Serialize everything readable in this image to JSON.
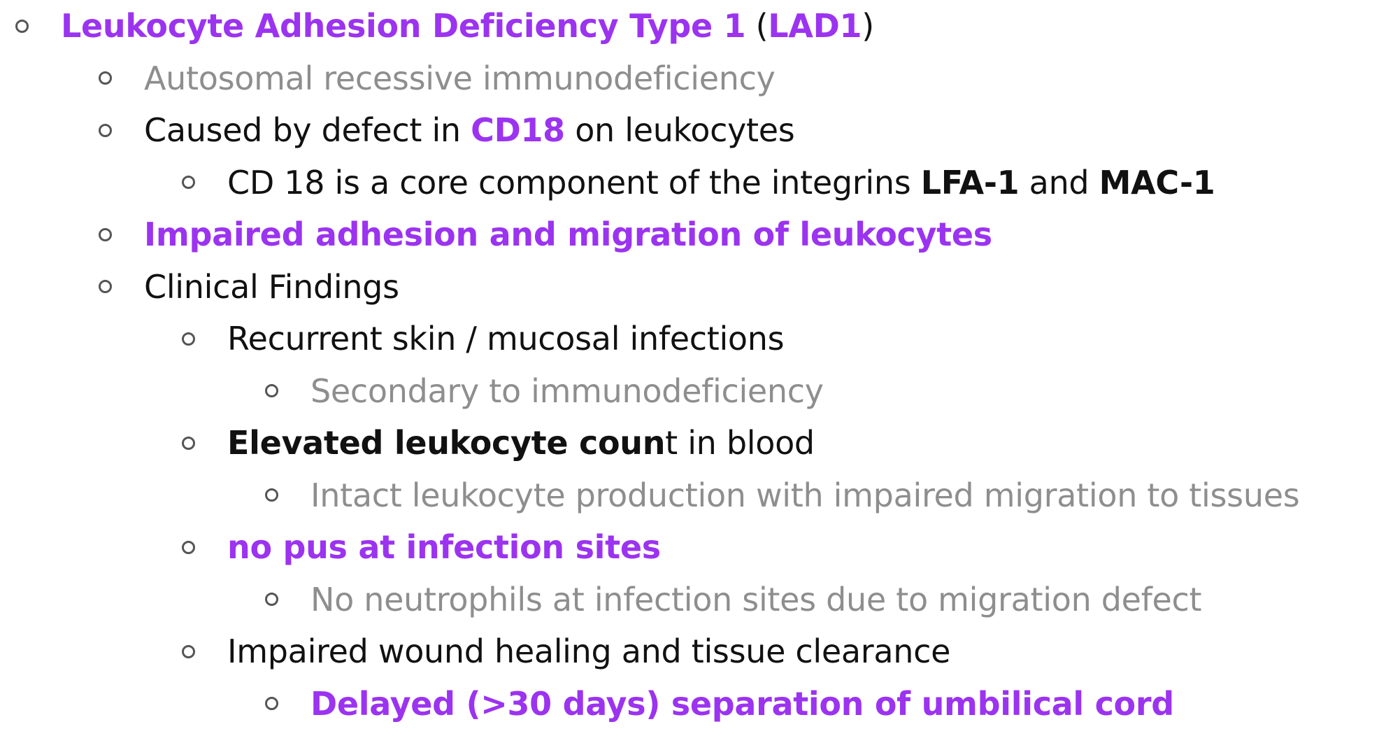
{
  "outline": {
    "rows": [
      {
        "level": 0,
        "segments": [
          {
            "text": "Leukocyte Adhesion Deficiency Type 1",
            "color": "purple",
            "bold": true
          },
          {
            "text": " (",
            "color": "black",
            "bold": false
          },
          {
            "text": "LAD1",
            "color": "purple",
            "bold": true
          },
          {
            "text": ")",
            "color": "black",
            "bold": false
          }
        ]
      },
      {
        "level": 1,
        "segments": [
          {
            "text": "Autosomal recessive immunodeficiency",
            "color": "gray",
            "bold": false
          }
        ]
      },
      {
        "level": 1,
        "segments": [
          {
            "text": "Caused by defect in ",
            "color": "black",
            "bold": false
          },
          {
            "text": "CD18",
            "color": "purple",
            "bold": true
          },
          {
            "text": " on leukocytes",
            "color": "black",
            "bold": false
          }
        ]
      },
      {
        "level": 2,
        "segments": [
          {
            "text": "CD 18 is a core component of the integrins ",
            "color": "black",
            "bold": false
          },
          {
            "text": "LFA-1",
            "color": "black",
            "bold": true
          },
          {
            "text": " and ",
            "color": "black",
            "bold": false
          },
          {
            "text": "MAC-1",
            "color": "black",
            "bold": true
          }
        ]
      },
      {
        "level": 1,
        "segments": [
          {
            "text": "Impaired adhesion and migration of leukocytes",
            "color": "purple",
            "bold": true
          }
        ]
      },
      {
        "level": 1,
        "segments": [
          {
            "text": "Clinical Findings",
            "color": "black",
            "bold": false
          }
        ]
      },
      {
        "level": 2,
        "segments": [
          {
            "text": "Recurrent skin / mucosal infections",
            "color": "black",
            "bold": false
          }
        ]
      },
      {
        "level": 3,
        "segments": [
          {
            "text": "Secondary to immunodeficiency",
            "color": "gray",
            "bold": false
          }
        ]
      },
      {
        "level": 2,
        "segments": [
          {
            "text": "Elevated leukocyte coun",
            "color": "black",
            "bold": true
          },
          {
            "text": "t in blood",
            "color": "black",
            "bold": false
          }
        ]
      },
      {
        "level": 3,
        "segments": [
          {
            "text": "Intact leukocyte production with impaired migration to tissues",
            "color": "gray",
            "bold": false
          }
        ]
      },
      {
        "level": 2,
        "segments": [
          {
            "text": "no pus at infection sites",
            "color": "purple",
            "bold": true
          }
        ]
      },
      {
        "level": 3,
        "segments": [
          {
            "text": "No neutrophils at infection sites due to migration defect",
            "color": "gray",
            "bold": false
          }
        ]
      },
      {
        "level": 2,
        "segments": [
          {
            "text": "Impaired wound healing and tissue clearance",
            "color": "black",
            "bold": false
          }
        ]
      },
      {
        "level": 3,
        "segments": [
          {
            "text": "Delayed (>30 days) separation of umbilical cord",
            "color": "purple",
            "bold": true
          }
        ]
      }
    ]
  },
  "colors": {
    "black": "#111111",
    "gray": "#8e8e8e",
    "purple": "#9b33f0",
    "bullet": "#555555"
  }
}
